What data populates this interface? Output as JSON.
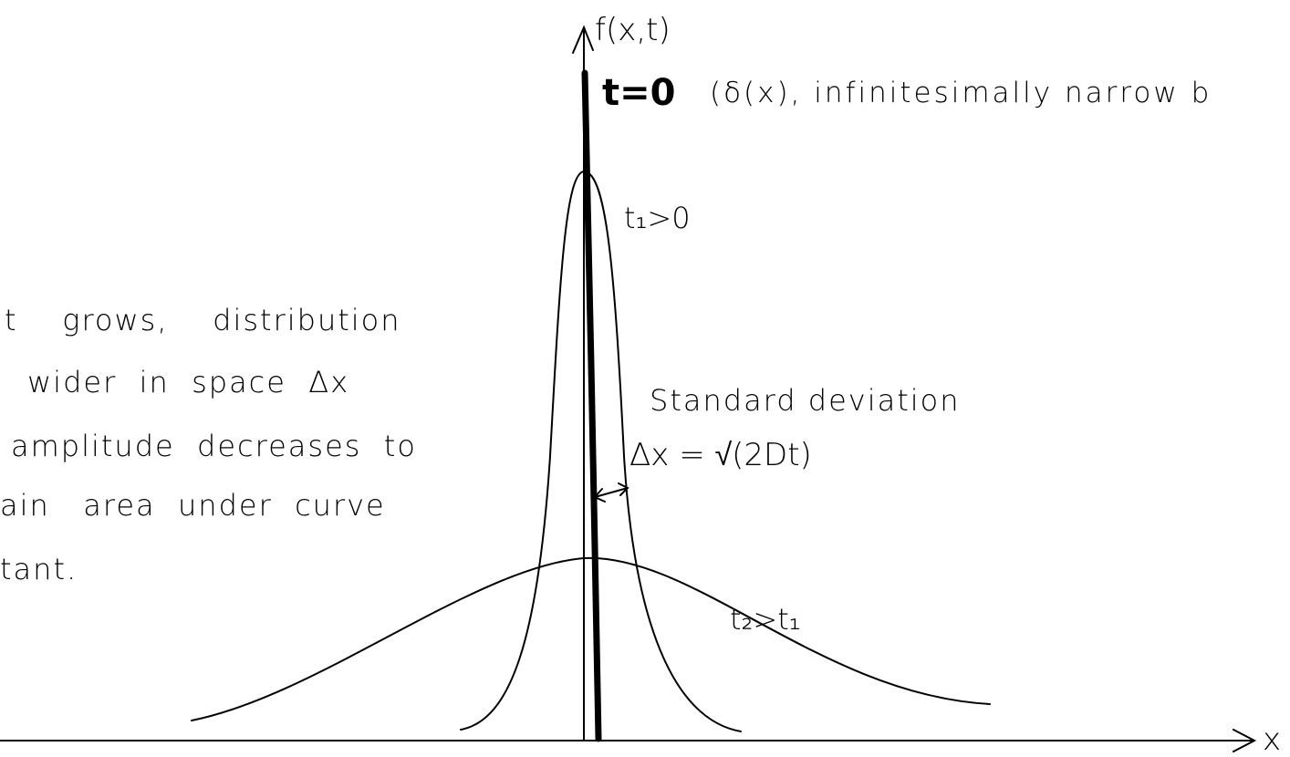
{
  "axes": {
    "y_label": "f(x,t)",
    "x_label": "x"
  },
  "curves": [
    {
      "label": "t=0",
      "note": "(δ(x), infinitesimally narrow b"
    },
    {
      "label": "t₁>0"
    },
    {
      "label": "t₂>t₁"
    }
  ],
  "annotation": {
    "title": "Standard deviation",
    "formula": "Δx = √(2Dt)"
  },
  "explanation": [
    "t    grows,    distribution",
    "wider  in  space  Δx",
    "amplitude  decreases  to",
    "ain   area  under  curve",
    "tant."
  ]
}
